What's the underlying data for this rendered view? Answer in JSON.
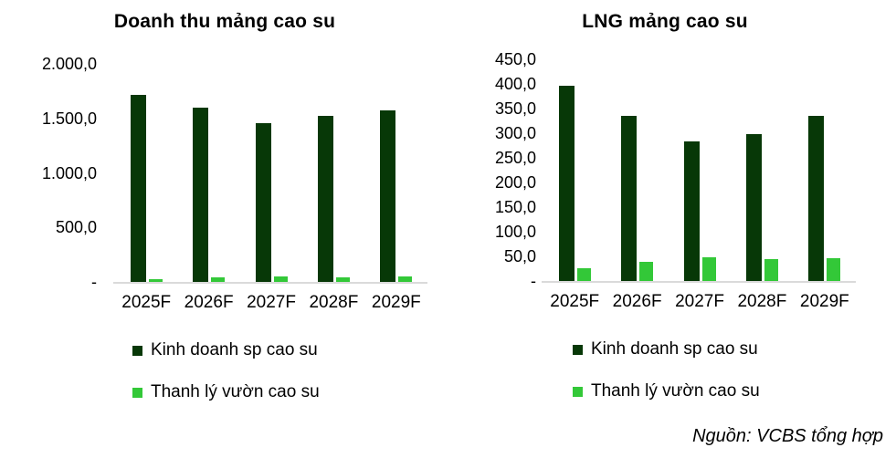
{
  "source_note": "Nguồn: VCBS tổng hợp",
  "colors": {
    "series1": "#073807",
    "series2": "#33c838",
    "axis_line": "#dadada",
    "text": "#000000",
    "background": "#ffffff"
  },
  "chart_data": [
    {
      "type": "bar",
      "title": "Doanh thu mảng cao su",
      "categories": [
        "2025F",
        "2026F",
        "2027F",
        "2028F",
        "2029F"
      ],
      "series": [
        {
          "name": "Kinh doanh sp cao su",
          "color_key": "series1",
          "values": [
            1715,
            1600,
            1455,
            1520,
            1575
          ]
        },
        {
          "name": "Thanh lý vườn cao su",
          "color_key": "series2",
          "values": [
            22,
            40,
            50,
            44,
            48
          ]
        }
      ],
      "y_axis": {
        "max": 2000,
        "ticks": [
          {
            "value": 2000,
            "label": "2.000,0"
          },
          {
            "value": 1500,
            "label": "1.500,0"
          },
          {
            "value": 1000,
            "label": "1.000,0"
          },
          {
            "value": 500,
            "label": "500,0"
          },
          {
            "value": 0,
            "label": "-"
          }
        ]
      },
      "grid": false,
      "legend_position": "bottom-left"
    },
    {
      "type": "bar",
      "title": "LNG mảng cao su",
      "categories": [
        "2025F",
        "2026F",
        "2027F",
        "2028F",
        "2029F"
      ],
      "series": [
        {
          "name": "Kinh doanh sp cao su",
          "color_key": "series1",
          "values": [
            397,
            336,
            284,
            299,
            335
          ]
        },
        {
          "name": "Thanh lý vườn cao su",
          "color_key": "series2",
          "values": [
            26,
            39,
            49,
            44,
            47
          ]
        }
      ],
      "y_axis": {
        "max": 450,
        "ticks": [
          {
            "value": 450,
            "label": "450,0"
          },
          {
            "value": 400,
            "label": "400,0"
          },
          {
            "value": 350,
            "label": "350,0"
          },
          {
            "value": 300,
            "label": "300,0"
          },
          {
            "value": 250,
            "label": "250,0"
          },
          {
            "value": 200,
            "label": "200,0"
          },
          {
            "value": 150,
            "label": "150,0"
          },
          {
            "value": 100,
            "label": "100,0"
          },
          {
            "value": 50,
            "label": "50,0"
          },
          {
            "value": 0,
            "label": "-"
          }
        ]
      },
      "grid": false,
      "legend_position": "bottom-left"
    }
  ]
}
